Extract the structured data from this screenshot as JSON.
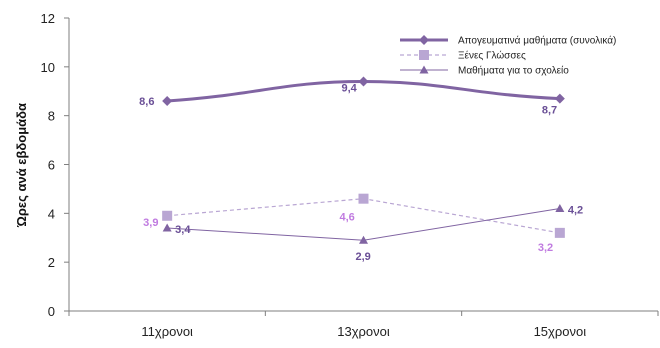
{
  "chart_data": {
    "type": "line",
    "title": "",
    "xlabel": "",
    "ylabel": "Ώρες ανά εβδομάδα",
    "categories": [
      "11χρονοι",
      "13χρονοι",
      "15χρονοι"
    ],
    "ylim": [
      0,
      12
    ],
    "yticks": [
      "0",
      "2",
      "4",
      "6",
      "8",
      "10",
      "12"
    ],
    "grid": false,
    "legend_position": "top-right",
    "series": [
      {
        "name": "Απογευματινά μαθήματα (συνολικά)",
        "values": [
          8.6,
          9.4,
          8.7
        ],
        "labels": [
          "8,6",
          "9,4",
          "8,7"
        ],
        "color": "#8064a2",
        "label_color": "#6a4f96",
        "line_style": "solid-thick",
        "marker": "diamond"
      },
      {
        "name": "Ξένες Γλώσσες",
        "values": [
          3.9,
          4.6,
          3.2
        ],
        "labels": [
          "3,9",
          "4,6",
          "3,2"
        ],
        "color": "#b9a6d3",
        "label_color": "#c07be0",
        "line_style": "dashed",
        "marker": "square"
      },
      {
        "name": "Μαθήματα για το σχολείο",
        "values": [
          3.4,
          2.9,
          4.2
        ],
        "labels": [
          "3,4",
          "2,9",
          "4,2"
        ],
        "color": "#8064a2",
        "label_color": "#6a4f96",
        "line_style": "solid-thin",
        "marker": "triangle"
      }
    ]
  }
}
